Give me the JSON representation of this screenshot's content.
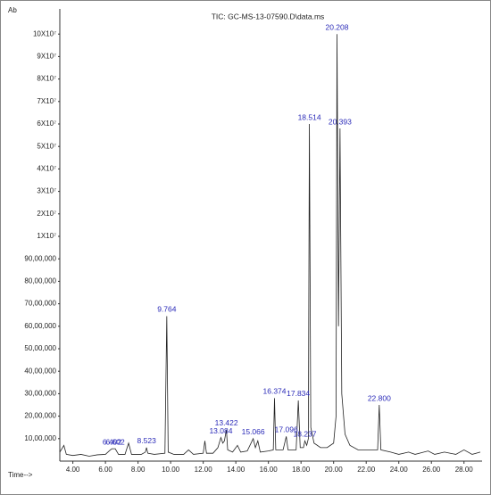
{
  "chart_data": {
    "type": "line",
    "title": "TIC: GC-MS-13-07590.D\\data.ms",
    "y_label": "Ab",
    "x_label": "Time-->",
    "y_scale": "piecewise-linear",
    "xlim": [
      3.2,
      29.0
    ],
    "xticks": [
      {
        "value": 4,
        "label": "4.00"
      },
      {
        "value": 6,
        "label": "6.00"
      },
      {
        "value": 8,
        "label": "8.00"
      },
      {
        "value": 10,
        "label": "10.00"
      },
      {
        "value": 12,
        "label": "12.00"
      },
      {
        "value": 14,
        "label": "14.00"
      },
      {
        "value": 16,
        "label": "16.00"
      },
      {
        "value": 18,
        "label": "18.00"
      },
      {
        "value": 20,
        "label": "20.00"
      },
      {
        "value": 22,
        "label": "22.00"
      },
      {
        "value": 24,
        "label": "24.00"
      },
      {
        "value": 26,
        "label": "26.00"
      },
      {
        "value": 28,
        "label": "28.00"
      }
    ],
    "ylim": [
      0,
      108000000
    ],
    "yticks": [
      {
        "value": 1000000,
        "label": "10,00,000"
      },
      {
        "value": 2000000,
        "label": "20,00,000"
      },
      {
        "value": 3000000,
        "label": "30,00,000"
      },
      {
        "value": 4000000,
        "label": "40,00,000"
      },
      {
        "value": 5000000,
        "label": "50,00,000"
      },
      {
        "value": 6000000,
        "label": "60,00,000"
      },
      {
        "value": 7000000,
        "label": "70,00,000"
      },
      {
        "value": 8000000,
        "label": "80,00,000"
      },
      {
        "value": 9000000,
        "label": "90,00,000"
      },
      {
        "value": 10000000,
        "label": "1X10⁷"
      },
      {
        "value": 20000000,
        "label": "2X10⁷"
      },
      {
        "value": 30000000,
        "label": "3X10⁷"
      },
      {
        "value": 40000000,
        "label": "4X10⁷"
      },
      {
        "value": 50000000,
        "label": "5X10⁷"
      },
      {
        "value": 60000000,
        "label": "6X10⁷"
      },
      {
        "value": 70000000,
        "label": "7X10⁷"
      },
      {
        "value": 80000000,
        "label": "8X10⁷"
      },
      {
        "value": 90000000,
        "label": "9X10⁷"
      },
      {
        "value": 100000000,
        "label": "10X10⁷"
      }
    ],
    "x": [
      3.2,
      3.45,
      3.6,
      4.0,
      4.5,
      5.0,
      5.5,
      6.0,
      6.3,
      6.4,
      6.6,
      6.8,
      7.2,
      7.42,
      7.6,
      8.2,
      8.45,
      8.52,
      8.6,
      9.0,
      9.65,
      9.764,
      9.85,
      10.2,
      10.8,
      11.1,
      11.4,
      12.0,
      12.1,
      12.2,
      12.6,
      12.9,
      13.084,
      13.2,
      13.3,
      13.422,
      13.5,
      13.8,
      14.1,
      14.3,
      14.7,
      15.0,
      15.066,
      15.2,
      15.35,
      15.5,
      16.0,
      16.3,
      16.374,
      16.45,
      16.9,
      17.096,
      17.2,
      17.7,
      17.834,
      17.95,
      18.15,
      18.237,
      18.35,
      18.45,
      18.514,
      18.6,
      18.8,
      19.2,
      19.6,
      20.0,
      20.15,
      20.208,
      20.3,
      20.393,
      20.5,
      20.7,
      21.0,
      21.5,
      22.0,
      22.7,
      22.8,
      22.9,
      23.5,
      24.0,
      24.6,
      25.0,
      25.8,
      26.2,
      26.8,
      27.5,
      28.0,
      28.5,
      29.0
    ],
    "series": [
      {
        "color": "#222222",
        "values": [
          400000,
          700000,
          300000,
          250000,
          300000,
          220000,
          280000,
          300000,
          500000,
          550000,
          550000,
          300000,
          300000,
          800000,
          300000,
          300000,
          400000,
          600000,
          350000,
          300000,
          350000,
          6450000,
          400000,
          300000,
          300000,
          500000,
          300000,
          350000,
          900000,
          350000,
          350000,
          600000,
          1050000,
          800000,
          900000,
          1400000,
          500000,
          400000,
          700000,
          400000,
          450000,
          900000,
          1000000,
          600000,
          900000,
          400000,
          450000,
          500000,
          2800000,
          500000,
          500000,
          1100000,
          500000,
          500000,
          2700000,
          600000,
          600000,
          900000,
          700000,
          1000000,
          60000000,
          1500000,
          800000,
          600000,
          600000,
          800000,
          2000000,
          100000000,
          6000000,
          58000000,
          3000000,
          1200000,
          700000,
          500000,
          500000,
          500000,
          2500000,
          500000,
          400000,
          300000,
          400000,
          300000,
          450000,
          300000,
          400000,
          300000,
          500000,
          300000,
          400000
        ]
      }
    ],
    "peak_labels": [
      {
        "value": 6.402,
        "label": "6.402"
      },
      {
        "value": 6.602,
        "label": "6.602"
      },
      {
        "value": 8.523,
        "label": "8.523"
      },
      {
        "value": 9.764,
        "label": "9.764"
      },
      {
        "value": 13.084,
        "label": "13.084"
      },
      {
        "value": 13.422,
        "label": "13.422"
      },
      {
        "value": 15.066,
        "label": "15.066"
      },
      {
        "value": 16.374,
        "label": "16.374"
      },
      {
        "value": 17.096,
        "label": "17.096"
      },
      {
        "value": 17.834,
        "label": "17.834"
      },
      {
        "value": 18.237,
        "label": "18.237"
      },
      {
        "value": 18.514,
        "label": "18.514"
      },
      {
        "value": 20.208,
        "label": "20.208"
      },
      {
        "value": 20.393,
        "label": "20.393"
      },
      {
        "value": 22.8,
        "label": "22.800"
      }
    ]
  }
}
